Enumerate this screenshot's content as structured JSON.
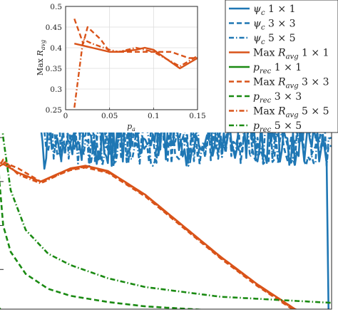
{
  "chart_data": [
    {
      "id": "main",
      "type": "line",
      "xlabel": "",
      "ylabel": "",
      "xlim": [
        0,
        0.45
      ],
      "ylim": [
        0.2,
        0.55
      ],
      "grid": false,
      "legend_placement": "top-right",
      "series": [
        {
          "name": "$\\psi_c\\ 1\\times1$",
          "label_main": "ψ",
          "label_sub": "c",
          "label_tail": " 1 × 1",
          "color": "#1f77b4",
          "dash": "solid",
          "note_shape": "starts near 0.52 at x=0, decays to ~0.43 by x≈0.07, then oscillates between ~0.37 and ~0.42 until x≈0.445, then drops to ~0.2",
          "x": [
            0.0,
            0.01,
            0.02,
            0.03,
            0.04,
            0.05,
            0.06,
            0.065,
            0.07,
            0.08,
            0.1,
            0.15,
            0.2,
            0.25,
            0.3,
            0.35,
            0.4,
            0.44,
            0.445,
            0.45
          ],
          "y": [
            0.52,
            0.5,
            0.47,
            0.45,
            0.44,
            0.43,
            0.42,
            0.36,
            0.41,
            0.38,
            0.4,
            0.39,
            0.4,
            0.38,
            0.41,
            0.39,
            0.4,
            0.4,
            0.2,
            0.2
          ]
        },
        {
          "name": "$\\psi_c\\ 3\\times3$",
          "label_main": "ψ",
          "label_sub": "c",
          "label_tail": " 3 × 3",
          "color": "#1f77b4",
          "dash": "dashed",
          "x": [
            0.0,
            0.02,
            0.05,
            0.07,
            0.1,
            0.2,
            0.3,
            0.4,
            0.45
          ],
          "y": [
            0.53,
            0.49,
            0.44,
            0.4,
            0.39,
            0.4,
            0.39,
            0.4,
            0.39
          ]
        },
        {
          "name": "$\\psi_c\\ 5\\times5$",
          "label_main": "ψ",
          "label_sub": "c",
          "label_tail": " 5 × 5",
          "color": "#1f77b4",
          "dash": "dashdot",
          "x": [
            0.0,
            0.02,
            0.05,
            0.07,
            0.1,
            0.2,
            0.3,
            0.4,
            0.45
          ],
          "y": [
            0.52,
            0.48,
            0.43,
            0.39,
            0.4,
            0.39,
            0.4,
            0.39,
            0.4
          ]
        },
        {
          "name": "Max $R_{avg}$ $1\\times1$",
          "label_main": "Max R",
          "label_sub": "avg",
          "label_tail": " 1 × 1",
          "color": "#d95319",
          "dash": "solid",
          "x": [
            0.0,
            0.01,
            0.03,
            0.06,
            0.1,
            0.12,
            0.15,
            0.2,
            0.25,
            0.3,
            0.35,
            0.4,
            0.43
          ],
          "y": [
            0.365,
            0.37,
            0.36,
            0.35,
            0.365,
            0.368,
            0.362,
            0.335,
            0.3,
            0.265,
            0.233,
            0.205,
            0.195
          ]
        },
        {
          "name": "$p_{rec}$ $1\\times1$",
          "label_main": "p",
          "label_sub": "rec",
          "label_tail": " 1 × 1",
          "color": "#1a8a12",
          "dash": "solid",
          "x": [
            0.0,
            0.005,
            0.01,
            0.02,
            0.05,
            0.1,
            0.2,
            0.3,
            0.45
          ],
          "y": [
            0.213,
            0.206,
            0.2,
            0.197,
            0.196,
            0.195,
            0.195,
            0.195,
            0.195
          ]
        },
        {
          "name": "Max $R_{avg}$ $3\\times3$",
          "label_main": "Max R",
          "label_sub": "avg",
          "label_tail": " 3 × 3",
          "color": "#d95319",
          "dash": "dashed",
          "x": [
            0.0,
            0.01,
            0.03,
            0.06,
            0.1,
            0.12,
            0.15,
            0.2,
            0.25,
            0.3,
            0.35,
            0.4,
            0.43
          ],
          "y": [
            0.37,
            0.372,
            0.365,
            0.35,
            0.363,
            0.366,
            0.36,
            0.333,
            0.298,
            0.263,
            0.231,
            0.203,
            0.194
          ]
        },
        {
          "name": "$p_{rec}$ $3\\times3$",
          "label_main": "p",
          "label_sub": "rec",
          "label_tail": " 3 × 3",
          "color": "#1a8a12",
          "dash": "dashed",
          "x": [
            0.0,
            0.005,
            0.01,
            0.02,
            0.04,
            0.07,
            0.1,
            0.15,
            0.2,
            0.3,
            0.45
          ],
          "y": [
            0.43,
            0.35,
            0.3,
            0.27,
            0.245,
            0.228,
            0.22,
            0.213,
            0.208,
            0.203,
            0.2
          ]
        },
        {
          "name": "Max $R_{avg}$ $5\\times5$",
          "label_main": "Max R",
          "label_sub": "avg",
          "label_tail": " 5 × 5",
          "color": "#d95319",
          "dash": "dashdot",
          "x": [
            0.0,
            0.01,
            0.03,
            0.06,
            0.1,
            0.12,
            0.15,
            0.2,
            0.25,
            0.3,
            0.35,
            0.4,
            0.43
          ],
          "y": [
            0.36,
            0.375,
            0.358,
            0.348,
            0.364,
            0.367,
            0.361,
            0.334,
            0.299,
            0.264,
            0.232,
            0.204,
            0.195
          ]
        },
        {
          "name": "$p_{rec}$ $5\\times5$",
          "label_main": "p",
          "label_sub": "rec",
          "label_tail": " 5 × 5",
          "color": "#1a8a12",
          "dash": "dashdot",
          "x": [
            0.0,
            0.005,
            0.01,
            0.02,
            0.04,
            0.07,
            0.1,
            0.15,
            0.2,
            0.3,
            0.45
          ],
          "y": [
            0.53,
            0.45,
            0.4,
            0.34,
            0.295,
            0.268,
            0.255,
            0.24,
            0.23,
            0.219,
            0.212
          ]
        }
      ]
    },
    {
      "id": "inset",
      "type": "line",
      "xlabel": "p_a",
      "ylabel": "Max R_avg",
      "xlim": [
        0,
        0.15
      ],
      "ylim": [
        0.25,
        0.5
      ],
      "xticks": [
        0,
        0.05,
        0.1,
        0.15
      ],
      "xtick_labels": [
        "0",
        "0.05",
        "0.1",
        "0.15"
      ],
      "yticks": [
        0.25,
        0.3,
        0.35,
        0.4,
        0.45,
        0.5
      ],
      "ytick_labels": [
        "0.25",
        "0.3",
        "0.35",
        "0.4",
        "0.45",
        "0.5"
      ],
      "grid": true,
      "series": [
        {
          "name": "1×1",
          "color": "#d95319",
          "dash": "solid",
          "x": [
            0.01,
            0.02,
            0.03,
            0.05,
            0.06,
            0.08,
            0.09,
            0.1,
            0.13,
            0.15
          ],
          "y": [
            0.41,
            0.405,
            0.4,
            0.39,
            0.39,
            0.395,
            0.4,
            0.395,
            0.35,
            0.375
          ]
        },
        {
          "name": "3×3",
          "color": "#d95319",
          "dash": "dashed",
          "x": [
            0.01,
            0.02,
            0.025,
            0.04,
            0.05,
            0.07,
            0.09,
            0.1,
            0.12,
            0.14,
            0.15
          ],
          "y": [
            0.47,
            0.41,
            0.45,
            0.42,
            0.39,
            0.39,
            0.39,
            0.39,
            0.39,
            0.375,
            0.375
          ]
        },
        {
          "name": "5×5",
          "color": "#d95319",
          "dash": "dashdot",
          "x": [
            0.01,
            0.02,
            0.03,
            0.05,
            0.06,
            0.08,
            0.1,
            0.13,
            0.15
          ],
          "y": [
            0.255,
            0.42,
            0.41,
            0.395,
            0.39,
            0.4,
            0.39,
            0.355,
            0.38
          ]
        }
      ]
    }
  ]
}
